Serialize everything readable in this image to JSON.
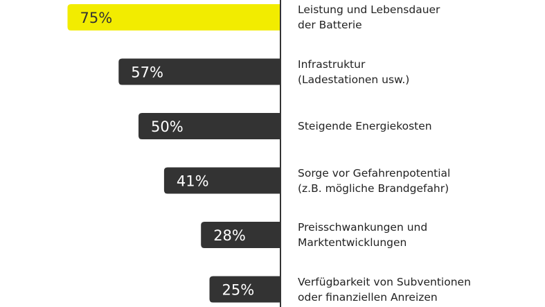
{
  "chart_data": {
    "type": "bar",
    "orientation": "horizontal",
    "direction": "leftward",
    "categories": [
      "Leistung und Lebensdauer\nder Batterie",
      "Infrastruktur\n(Ladestationen usw.)",
      "Steigende Energiekosten",
      "Sorge vor Gefahrenpotential\n(z.B. mögliche Brandgefahr)",
      "Preisschwankungen und\nMarktentwicklungen",
      "Verfügbarkeit von Subventionen\noder finanziellen Anreizen"
    ],
    "values": [
      75,
      57,
      50,
      41,
      28,
      25
    ],
    "value_labels": [
      "75%",
      "57%",
      "50%",
      "41%",
      "28%",
      "25%"
    ],
    "unit": "%",
    "grid": false,
    "colors": {
      "highlight": "#f2ec00",
      "default": "#333333",
      "highlight_text": "#333333",
      "default_text": "#ffffff",
      "axis": "#333333"
    }
  }
}
